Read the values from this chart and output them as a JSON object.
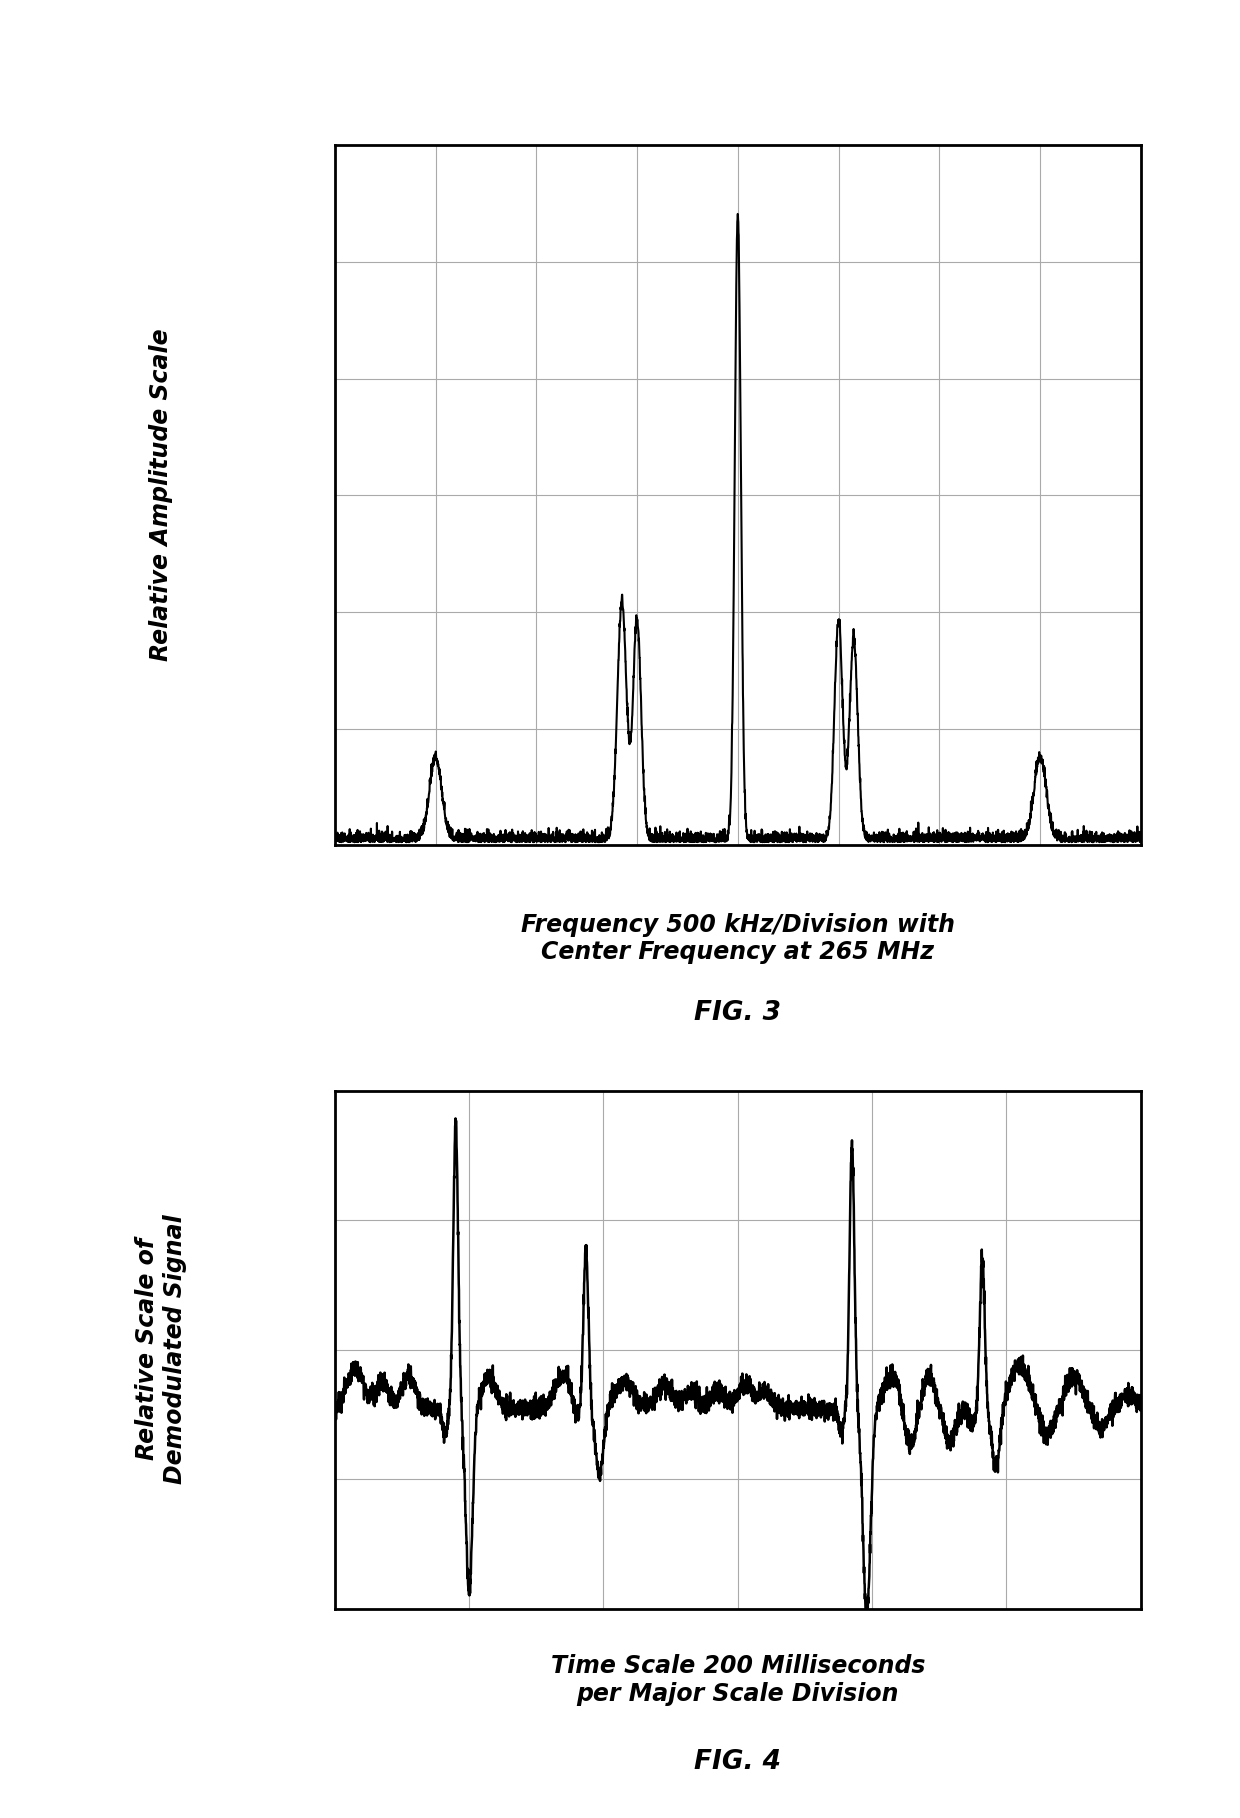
{
  "fig3": {
    "title_line1": "Frequency 500 kHz/Division with",
    "title_line2": "Center Frequency at 265 MHz",
    "fig_label": "FIG. 3",
    "ylabel": "Relative Amplitude Scale",
    "grid_cols": 8,
    "grid_rows": 6,
    "background_color": "#ffffff",
    "line_color": "#000000",
    "grid_color": "#aaaaaa",
    "border_color": "#000000"
  },
  "fig4": {
    "title_line1": "Time Scale 200 Milliseconds",
    "title_line2": "per Major Scale Division",
    "fig_label": "FIG. 4",
    "ylabel": "Relative Scale of\nDemodulated Signal",
    "grid_cols": 6,
    "grid_rows": 4,
    "background_color": "#ffffff",
    "line_color": "#000000",
    "grid_color": "#aaaaaa",
    "border_color": "#000000"
  },
  "title_fontsize": 17,
  "ylabel_fontsize": 17,
  "fig_label_fontsize": 19,
  "page_bg": "#ffffff"
}
